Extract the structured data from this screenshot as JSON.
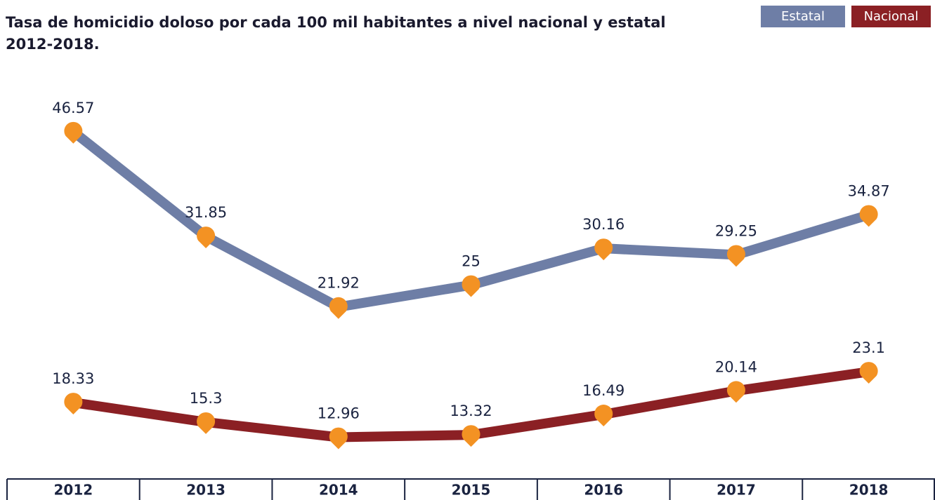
{
  "chart_data": {
    "type": "line",
    "title": "Tasa de homicidio doloso por cada 100 mil habitantes a nivel nacional y estatal",
    "subtitle": "2012-2018.",
    "categories": [
      "2012",
      "2013",
      "2014",
      "2015",
      "2016",
      "2017",
      "2018"
    ],
    "series": [
      {
        "name": "Estatal",
        "color": "#6e7ea6",
        "values": [
          46.57,
          31.85,
          21.92,
          25,
          30.16,
          29.25,
          34.87
        ]
      },
      {
        "name": "Nacional",
        "color": "#8b2024",
        "axis": "y2",
        "values": [
          18.33,
          15.3,
          12.96,
          13.32,
          16.49,
          20.14,
          23.1
        ]
      }
    ],
    "marker_color": "#f39223",
    "ylim": [
      0,
      50
    ],
    "y2lim": [
      9,
      64
    ]
  }
}
